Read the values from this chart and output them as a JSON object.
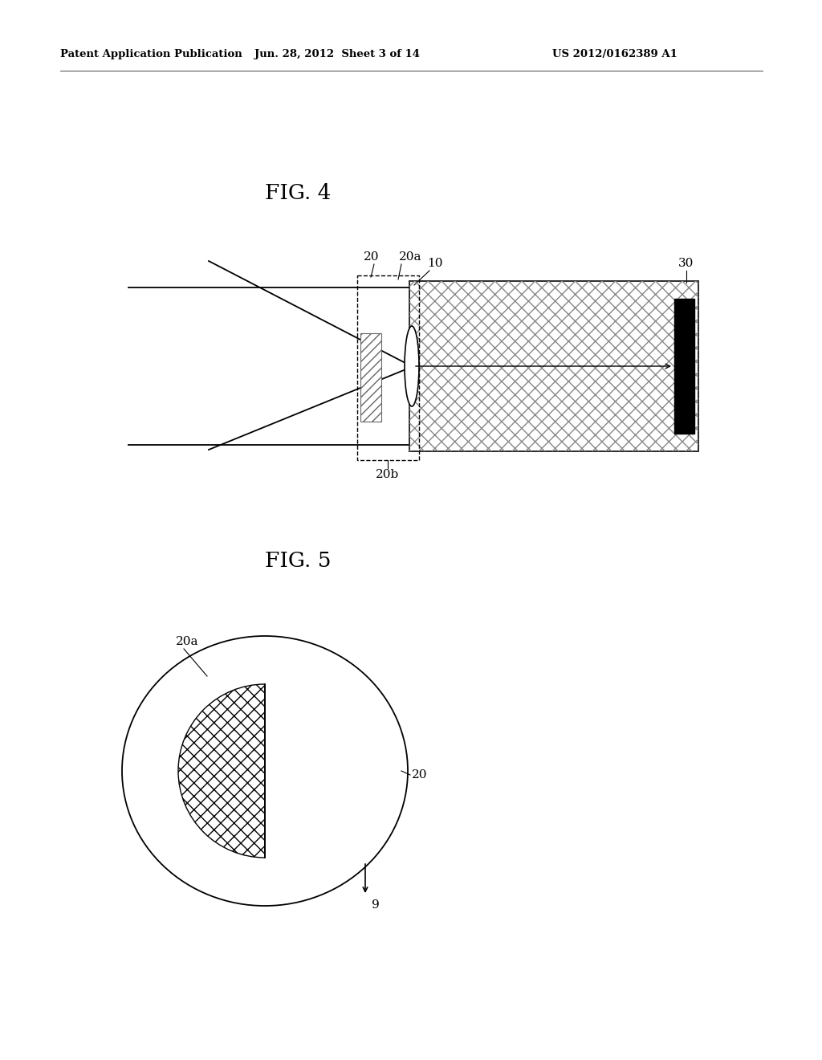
{
  "bg_color": "#ffffff",
  "header_left": "Patent Application Publication",
  "header_mid": "Jun. 28, 2012  Sheet 3 of 14",
  "header_right": "US 2012/0162389 A1",
  "fig4_title": "FIG. 4",
  "fig5_title": "FIG. 5",
  "label_20": "20",
  "label_20a": "20a",
  "label_20b": "20b",
  "label_10": "10",
  "label_30": "30",
  "label_9": "9",
  "line_color": "#000000"
}
